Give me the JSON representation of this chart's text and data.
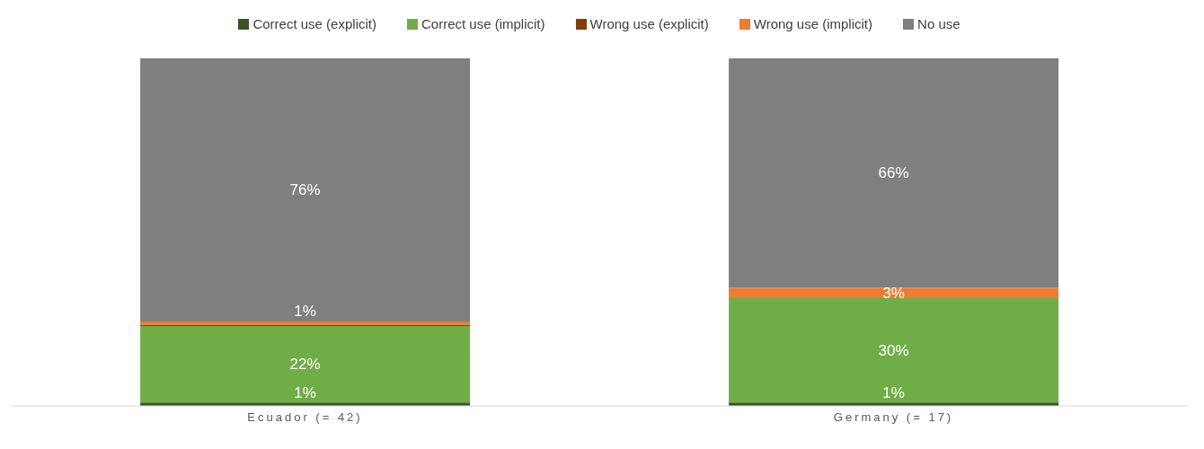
{
  "chart_data": {
    "type": "bar",
    "stacked": true,
    "categories": [
      "Ecuador (= 42)",
      "Germany (= 17)"
    ],
    "series": [
      {
        "name": "Correct use (explicit)",
        "color": "#375623",
        "values": [
          1,
          1
        ],
        "value_labels": [
          "1%",
          "1%"
        ]
      },
      {
        "name": "Correct use (implicit)",
        "color": "#70ad47",
        "values": [
          22,
          30
        ],
        "value_labels": [
          "22%",
          "30%"
        ]
      },
      {
        "name": "Wrong use (explicit)",
        "color": "#843c0c",
        "values": [
          0.3,
          0
        ],
        "value_labels": [
          null,
          null
        ]
      },
      {
        "name": "Wrong use (implicit)",
        "color": "#ed7d31",
        "values": [
          1,
          3
        ],
        "value_labels": [
          "1%",
          "3%"
        ]
      },
      {
        "name": "No use",
        "color": "#7f7f7f",
        "values": [
          76,
          66
        ],
        "value_labels": [
          "76%",
          "66%"
        ]
      }
    ],
    "ylim": [
      0,
      100
    ],
    "tick_labels": "x",
    "legend": "top"
  }
}
